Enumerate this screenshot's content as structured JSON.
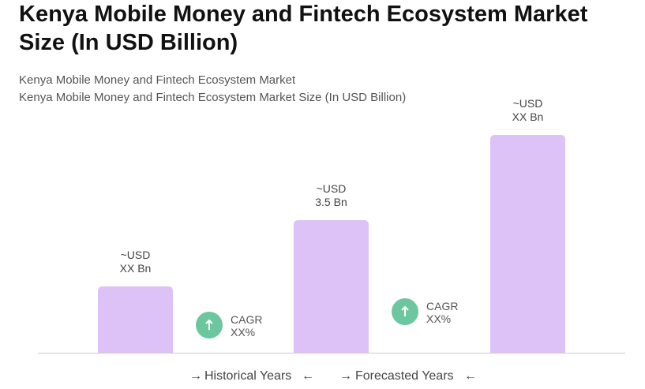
{
  "chart_data": {
    "type": "bar",
    "title": [
      "Kenya Mobile Money and Fintech Ecosystem Market",
      "Size (In USD Billion)"
    ],
    "subtitle": [
      "Kenya Mobile Money and Fintech Ecosystem Market",
      "Kenya Mobile Money and Fintech Ecosystem Market Size (In USD Billion)"
    ],
    "categories": [
      null,
      null,
      null
    ],
    "values": [
      1.75,
      3.5,
      5.75
    ],
    "value_labels": [
      [
        "~USD",
        "XX Bn"
      ],
      [
        "~USD",
        "3.5 Bn"
      ],
      [
        "~USD",
        "XX Bn"
      ]
    ],
    "color": "#dcc2f7",
    "annotations": [
      [
        "CAGR",
        "XX%"
      ],
      [
        "CAGR",
        "XX%"
      ]
    ],
    "periods": [
      "Historical Years",
      "Forecasted Years"
    ]
  }
}
